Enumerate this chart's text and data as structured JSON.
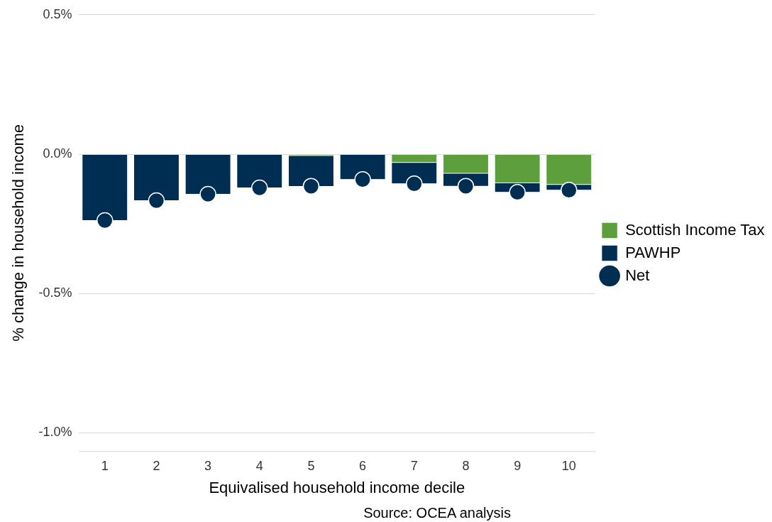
{
  "chart_data": {
    "type": "bar",
    "stacked": true,
    "xlabel": "Equivalised household income decile",
    "ylabel": "% change in household income",
    "categories": [
      "1",
      "2",
      "3",
      "4",
      "5",
      "6",
      "7",
      "8",
      "9",
      "10"
    ],
    "series": [
      {
        "name": "Scottish Income Tax",
        "color": "#5e9f3d",
        "values": [
          0,
          0,
          0,
          0,
          -0.005,
          0,
          -0.03,
          -0.069,
          -0.103,
          -0.109
        ]
      },
      {
        "name": "PAWHP",
        "color": "#002d52",
        "values": [
          -0.238,
          -0.167,
          -0.144,
          -0.121,
          -0.111,
          -0.091,
          -0.076,
          -0.046,
          -0.034,
          -0.02
        ]
      },
      {
        "name": "Net",
        "type": "scatter",
        "color": "#002d52",
        "x": [
          "1",
          "2",
          "3",
          "4",
          "5",
          "6",
          "7",
          "8",
          "9",
          "10"
        ],
        "values": [
          -0.238,
          -0.167,
          -0.144,
          -0.121,
          -0.115,
          -0.091,
          -0.106,
          -0.115,
          -0.137,
          -0.129
        ]
      }
    ],
    "ylim": [
      -1.065,
      0.5
    ],
    "yticks": [
      {
        "value": 0.5,
        "label": "0.5%"
      },
      {
        "value": 0,
        "label": "0.0%"
      },
      {
        "value": -0.5,
        "label": "-0.5%"
      },
      {
        "value": -1,
        "label": "-1.0%"
      }
    ],
    "grid": "y",
    "legend": "right",
    "marker": "circle",
    "annotations": [
      "Source: OCEA analysis"
    ]
  }
}
